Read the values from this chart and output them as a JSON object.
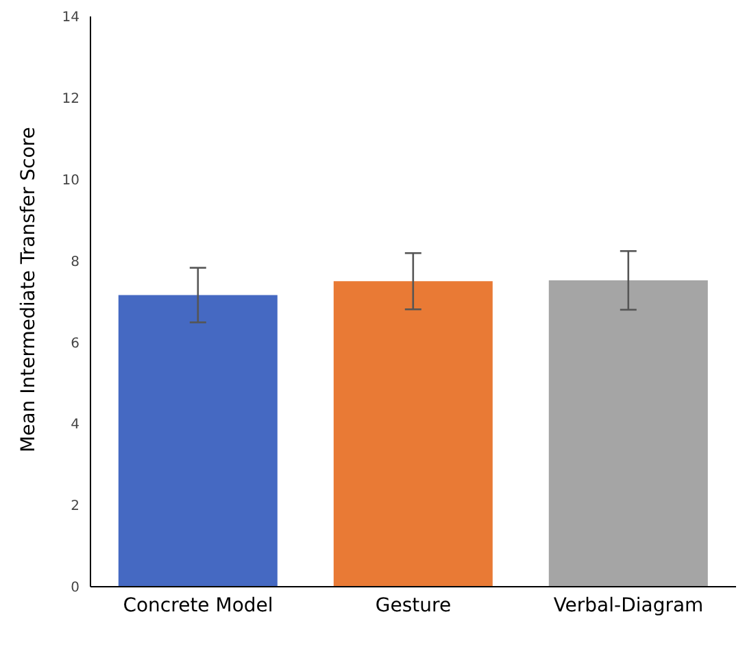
{
  "chart_data": {
    "type": "bar",
    "ylabel": "Mean Intermediate Transfer Score",
    "categories": [
      "Concrete Model",
      "Gesture",
      "Verbal-Diagram"
    ],
    "values": [
      7.16,
      7.5,
      7.52
    ],
    "colors": [
      "#4569c2",
      "#e97a35",
      "#a5a5a5"
    ],
    "errors": [
      0.67,
      0.69,
      0.72
    ],
    "ylim": [
      0,
      14
    ],
    "yticks": [
      0,
      2,
      4,
      6,
      8,
      10,
      12,
      14
    ],
    "grid": false,
    "legend": false
  }
}
